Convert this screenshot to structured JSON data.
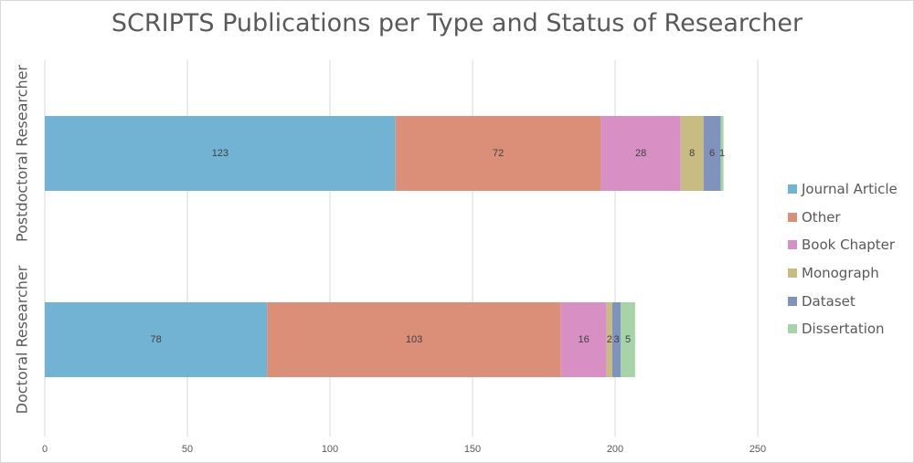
{
  "chart_data": {
    "type": "bar",
    "orientation": "horizontal",
    "stacked": true,
    "title": "SCRIPTS Publications per Type and Status of Researcher",
    "categories": [
      "Postdoctoral Researcher",
      "Doctoral Researcher"
    ],
    "series": [
      {
        "name": "Journal Article",
        "color": "#72b3d3",
        "values": [
          123,
          78
        ],
        "labels": [
          "123",
          "78"
        ]
      },
      {
        "name": "Other",
        "color": "#db8f78",
        "values": [
          72,
          103
        ],
        "labels": [
          "72",
          "103"
        ]
      },
      {
        "name": "Book Chapter",
        "color": "#d78fc4",
        "values": [
          28,
          16
        ],
        "labels": [
          "28",
          "16"
        ]
      },
      {
        "name": "Monograph",
        "color": "#c9bc82",
        "values": [
          8,
          2
        ],
        "labels": [
          "8",
          "2"
        ]
      },
      {
        "name": "Dataset",
        "color": "#7f93bd",
        "values": [
          6,
          3
        ],
        "labels": [
          "6",
          "3"
        ]
      },
      {
        "name": "Dissertation",
        "color": "#a6d3a8",
        "values": [
          1,
          5
        ],
        "labels": [
          "1",
          "5"
        ]
      }
    ],
    "xlim": [
      0,
      250
    ],
    "xticks": [
      "0",
      "50",
      "100",
      "150",
      "200",
      "250"
    ],
    "grid": true,
    "legend_position": "right"
  }
}
